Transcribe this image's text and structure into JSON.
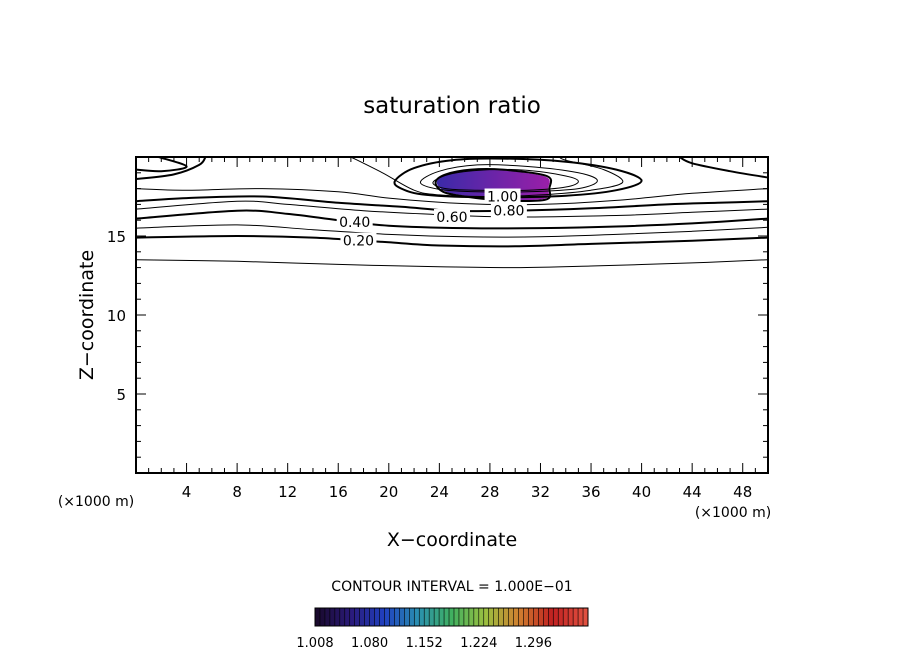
{
  "chart_data": {
    "type": "contour",
    "title": "saturation ratio",
    "xlabel": "X−coordinate",
    "ylabel": "Z−coordinate",
    "x_unit_label": "(×1000 m)",
    "z_unit_label": "(×1000 m)",
    "xlim": [
      0,
      50
    ],
    "ylim": [
      0,
      20
    ],
    "x_ticks": [
      4,
      8,
      12,
      16,
      20,
      24,
      28,
      32,
      36,
      40,
      44,
      48
    ],
    "y_ticks": [
      5,
      10,
      15
    ],
    "contour_interval_text": "CONTOUR INTERVAL = 1.000E−01",
    "contour_labels": [
      {
        "text": "0.20",
        "x": 17.6,
        "y": 14.7
      },
      {
        "text": "0.40",
        "x": 17.3,
        "y": 15.9
      },
      {
        "text": "0.60",
        "x": 25.0,
        "y": 16.2
      },
      {
        "text": "0.80",
        "x": 29.5,
        "y": 16.6
      },
      {
        "text": "1.00",
        "x": 29.0,
        "y": 17.5
      }
    ],
    "contours": [
      {
        "level": 0.1,
        "bold": false,
        "points": [
          [
            0,
            13.5
          ],
          [
            8,
            13.4
          ],
          [
            16,
            13.2
          ],
          [
            24,
            13.05
          ],
          [
            30,
            13.0
          ],
          [
            36,
            13.1
          ],
          [
            44,
            13.3
          ],
          [
            50,
            13.5
          ]
        ]
      },
      {
        "level": 0.2,
        "bold": true,
        "points": [
          [
            0,
            14.9
          ],
          [
            8,
            15.0
          ],
          [
            14,
            14.9
          ],
          [
            18,
            14.7
          ],
          [
            20,
            14.6
          ],
          [
            24,
            14.4
          ],
          [
            30,
            14.35
          ],
          [
            36,
            14.5
          ],
          [
            44,
            14.7
          ],
          [
            50,
            14.9
          ]
        ]
      },
      {
        "level": 0.3,
        "bold": false,
        "points": [
          [
            0,
            15.5
          ],
          [
            8,
            15.7
          ],
          [
            14,
            15.4
          ],
          [
            20,
            15.1
          ],
          [
            26,
            14.95
          ],
          [
            32,
            14.95
          ],
          [
            38,
            15.1
          ],
          [
            44,
            15.3
          ],
          [
            50,
            15.55
          ]
        ]
      },
      {
        "level": 0.4,
        "bold": true,
        "points": [
          [
            0,
            16.1
          ],
          [
            8,
            16.6
          ],
          [
            12,
            16.4
          ],
          [
            16,
            16.0
          ],
          [
            20,
            15.65
          ],
          [
            26,
            15.5
          ],
          [
            32,
            15.5
          ],
          [
            38,
            15.6
          ],
          [
            44,
            15.8
          ],
          [
            50,
            16.1
          ]
        ]
      },
      {
        "level": 0.5,
        "bold": false,
        "points": [
          [
            0,
            16.7
          ],
          [
            8,
            17.2
          ],
          [
            12,
            17.0
          ],
          [
            18,
            16.6
          ],
          [
            24,
            16.35
          ],
          [
            30,
            16.2
          ],
          [
            38,
            16.3
          ],
          [
            44,
            16.5
          ],
          [
            50,
            16.7
          ]
        ]
      },
      {
        "level": 0.6,
        "bold": true,
        "points": [
          [
            0,
            17.2
          ],
          [
            4,
            17.4
          ],
          [
            10,
            17.5
          ],
          [
            16,
            17.1
          ],
          [
            21,
            16.85
          ],
          [
            25,
            16.6
          ],
          [
            30,
            16.6
          ],
          [
            36,
            16.75
          ],
          [
            42,
            17.0
          ],
          [
            46,
            17.1
          ],
          [
            50,
            17.2
          ]
        ]
      },
      {
        "level": 0.7,
        "bold": false,
        "points": [
          [
            0,
            18.0
          ],
          [
            4,
            17.9
          ],
          [
            10,
            18.0
          ],
          [
            16,
            17.8
          ],
          [
            20,
            17.4
          ],
          [
            26,
            17.05
          ],
          [
            32,
            17.0
          ],
          [
            38,
            17.25
          ],
          [
            44,
            17.7
          ],
          [
            50,
            18.0
          ]
        ]
      },
      {
        "level": 0.8,
        "bold": true,
        "points": [
          [
            0,
            18.6
          ],
          [
            3,
            18.9
          ],
          [
            5,
            19.5
          ],
          [
            5.5,
            20
          ]
        ],
        "closed": false
      },
      {
        "level": 0.8,
        "bold": true,
        "points": [
          [
            1.8,
            20
          ],
          [
            4,
            19.4
          ],
          [
            2,
            19.1
          ],
          [
            0,
            19.2
          ]
        ],
        "closed": false
      },
      {
        "level": 0.8,
        "bold": true,
        "points": [
          [
            50,
            18.7
          ],
          [
            47,
            19.1
          ],
          [
            44,
            19.6
          ],
          [
            43,
            20
          ]
        ],
        "closed": false
      },
      {
        "level": 0.8,
        "bold": true,
        "points": [
          [
            20.5,
            18.5
          ],
          [
            22,
            19.3
          ],
          [
            25,
            19.8
          ],
          [
            29,
            19.9
          ],
          [
            34,
            19.7
          ],
          [
            38,
            19.2
          ],
          [
            40,
            18.5
          ],
          [
            38,
            17.9
          ],
          [
            34,
            17.55
          ],
          [
            28,
            17.45
          ],
          [
            23,
            17.6
          ],
          [
            21,
            18.0
          ],
          [
            20.5,
            18.5
          ]
        ],
        "closed": true
      },
      {
        "level": 0.9,
        "bold": false,
        "points": [
          [
            17,
            20
          ],
          [
            19.5,
            19.0
          ],
          [
            22,
            17.9
          ],
          [
            24,
            17.6
          ],
          [
            28,
            17.5
          ],
          [
            32,
            17.6
          ],
          [
            36,
            17.9
          ],
          [
            38.5,
            18.4
          ],
          [
            37,
            19.2
          ],
          [
            34,
            19.8
          ],
          [
            33.5,
            20
          ]
        ],
        "closed": false
      },
      {
        "level": 0.9,
        "bold": false,
        "points": [
          [
            22.5,
            18.4
          ],
          [
            24,
            19.1
          ],
          [
            27,
            19.5
          ],
          [
            31,
            19.4
          ],
          [
            35,
            19.0
          ],
          [
            36.5,
            18.5
          ],
          [
            35,
            18.0
          ],
          [
            31,
            17.8
          ],
          [
            27,
            17.8
          ],
          [
            24,
            17.95
          ],
          [
            22.5,
            18.4
          ]
        ],
        "closed": true
      },
      {
        "level": 0.95,
        "bold": false,
        "points": [
          [
            23.5,
            18.4
          ],
          [
            25,
            18.95
          ],
          [
            28,
            19.2
          ],
          [
            31,
            19.15
          ],
          [
            34,
            18.8
          ],
          [
            35,
            18.45
          ],
          [
            34,
            18.1
          ],
          [
            31,
            17.9
          ],
          [
            27,
            17.9
          ],
          [
            24.5,
            18.0
          ],
          [
            23.5,
            18.4
          ]
        ],
        "closed": true
      },
      {
        "level": 1.0,
        "bold": true,
        "points": [
          [
            23.7,
            18.4
          ],
          [
            24.5,
            18.9
          ],
          [
            26.5,
            19.2
          ],
          [
            29,
            19.2
          ],
          [
            32.5,
            18.8
          ],
          [
            32.7,
            18.0
          ],
          [
            32.4,
            17.3
          ],
          [
            29,
            17.25
          ],
          [
            26,
            17.5
          ],
          [
            24.3,
            17.8
          ],
          [
            23.7,
            18.4
          ]
        ],
        "closed": true
      }
    ],
    "supersaturated_region": {
      "boundary": [
        [
          23.8,
          18.4
        ],
        [
          24.5,
          18.85
        ],
        [
          26.5,
          19.15
        ],
        [
          29,
          19.15
        ],
        [
          32.4,
          18.75
        ],
        [
          32.6,
          18.0
        ],
        [
          32.3,
          17.35
        ],
        [
          29,
          17.3
        ],
        [
          26,
          17.55
        ],
        [
          24.4,
          17.85
        ],
        [
          23.8,
          18.4
        ]
      ],
      "color_from": "#3b2aa8",
      "color_to": "#9a1fa8"
    },
    "colorbar": {
      "min": 1.008,
      "max": 1.368,
      "tick_labels": [
        "1.008",
        "1.080",
        "1.152",
        "1.224",
        "1.296"
      ],
      "colors": [
        "#1a0a2e",
        "#2a1a7a",
        "#2040c0",
        "#2a90b0",
        "#40b060",
        "#9ac040",
        "#d08030",
        "#c02020",
        "#e05040"
      ]
    }
  }
}
